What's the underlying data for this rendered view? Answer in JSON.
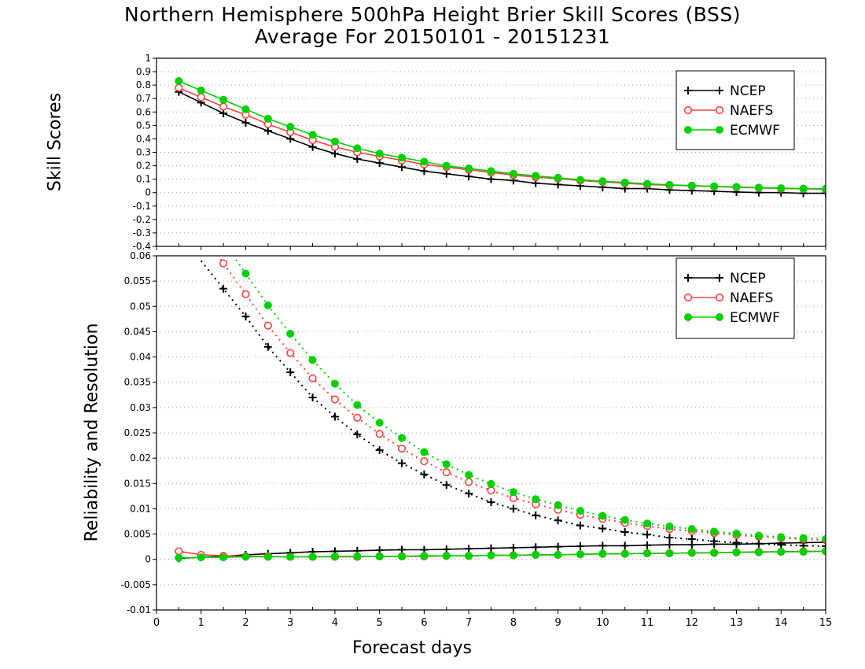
{
  "title_line1": "Northern Hemisphere 500hPa Height Brier Skill Scores (BSS)",
  "title_line2": "Average For 20150101 - 20151231",
  "chart_data": [
    {
      "type": "line",
      "ylabel": "Skill Scores",
      "xlim": [
        0,
        15
      ],
      "ylim": [
        -0.4,
        1
      ],
      "xticks": [
        "0",
        "1",
        "2",
        "3",
        "4",
        "5",
        "6",
        "7",
        "8",
        "9",
        "10",
        "11",
        "12",
        "13",
        "14",
        "15"
      ],
      "yticks": [
        "-0.4",
        "-0.3",
        "-0.2",
        "-0.1",
        "0",
        "0.1",
        "0.2",
        "0.3",
        "0.4",
        "0.5",
        "0.6",
        "0.7",
        "0.8",
        "0.9",
        "1"
      ],
      "grid": true,
      "legend_position": "top-right",
      "x": [
        0.5,
        1,
        1.5,
        2,
        2.5,
        3,
        3.5,
        4,
        4.5,
        5,
        5.5,
        6,
        6.5,
        7,
        7.5,
        8,
        8.5,
        9,
        9.5,
        10,
        10.5,
        11,
        11.5,
        12,
        12.5,
        13,
        13.5,
        14,
        14.5,
        15
      ],
      "series": [
        {
          "name": "NCEP",
          "color": "#000000",
          "marker": "plus",
          "values": [
            0.75,
            0.67,
            0.59,
            0.52,
            0.46,
            0.4,
            0.34,
            0.29,
            0.25,
            0.22,
            0.19,
            0.16,
            0.14,
            0.12,
            0.1,
            0.09,
            0.07,
            0.06,
            0.05,
            0.04,
            0.03,
            0.03,
            0.02,
            0.015,
            0.01,
            0.005,
            0.0,
            0.0,
            -0.005,
            -0.005
          ]
        },
        {
          "name": "NAEFS",
          "color": "#ff4040",
          "marker": "circle-open",
          "values": [
            0.78,
            0.71,
            0.64,
            0.58,
            0.51,
            0.45,
            0.39,
            0.34,
            0.3,
            0.27,
            0.24,
            0.21,
            0.19,
            0.17,
            0.15,
            0.13,
            0.115,
            0.105,
            0.09,
            0.08,
            0.07,
            0.06,
            0.055,
            0.05,
            0.045,
            0.04,
            0.035,
            0.03,
            0.028,
            0.025
          ]
        },
        {
          "name": "ECMWF",
          "color": "#00d000",
          "marker": "circle-filled",
          "values": [
            0.83,
            0.76,
            0.69,
            0.62,
            0.55,
            0.49,
            0.43,
            0.38,
            0.33,
            0.29,
            0.26,
            0.23,
            0.2,
            0.18,
            0.16,
            0.14,
            0.125,
            0.11,
            0.095,
            0.085,
            0.075,
            0.065,
            0.058,
            0.052,
            0.047,
            0.042,
            0.037,
            0.033,
            0.03,
            0.028
          ]
        }
      ]
    },
    {
      "type": "line",
      "ylabel": "Reliability and Resolution",
      "xlabel": "Forecast days",
      "xlim": [
        0,
        15
      ],
      "ylim": [
        -0.01,
        0.06
      ],
      "xticks": [
        "0",
        "1",
        "2",
        "3",
        "4",
        "5",
        "6",
        "7",
        "8",
        "9",
        "10",
        "11",
        "12",
        "13",
        "14",
        "15"
      ],
      "yticks": [
        "-0.01",
        "-0.005",
        "0",
        "0.005",
        "0.01",
        "0.015",
        "0.02",
        "0.025",
        "0.03",
        "0.035",
        "0.04",
        "0.045",
        "0.05",
        "0.055",
        "0.06"
      ],
      "grid": true,
      "legend_position": "top-right",
      "x": [
        0.5,
        1,
        1.5,
        2,
        2.5,
        3,
        3.5,
        4,
        4.5,
        5,
        5.5,
        6,
        6.5,
        7,
        7.5,
        8,
        8.5,
        9,
        9.5,
        10,
        10.5,
        11,
        11.5,
        12,
        12.5,
        13,
        13.5,
        14,
        14.5,
        15
      ],
      "series": [
        {
          "name": "NCEP",
          "color": "#000000",
          "marker": "plus",
          "role": "resolution",
          "values": [
            null,
            null,
            0.0535,
            0.048,
            0.042,
            0.037,
            0.032,
            0.0282,
            0.0247,
            0.0216,
            0.019,
            0.0168,
            0.0147,
            0.013,
            0.0113,
            0.01,
            0.0087,
            0.0077,
            0.0067,
            0.0061,
            0.0054,
            0.0049,
            0.0043,
            0.004,
            0.0036,
            0.0033,
            0.0031,
            0.0029,
            0.0027,
            0.0026
          ]
        },
        {
          "name": "NCEP",
          "color": "#000000",
          "marker": "plus",
          "role": "reliability",
          "values": [
            0.0002,
            0.0004,
            0.0006,
            0.0009,
            0.0011,
            0.0013,
            0.0015,
            0.0016,
            0.0017,
            0.0018,
            0.0019,
            0.0019,
            0.002,
            0.0021,
            0.0022,
            0.0023,
            0.0024,
            0.0025,
            0.0026,
            0.0027,
            0.0027,
            0.0028,
            0.0029,
            0.0029,
            0.003,
            0.003,
            0.0031,
            0.0032,
            0.0033,
            0.0034
          ]
        },
        {
          "name": "NAEFS",
          "color": "#ff4040",
          "marker": "circle-open",
          "role": "resolution",
          "values": [
            null,
            null,
            0.0585,
            0.0524,
            0.0462,
            0.0408,
            0.0358,
            0.0316,
            0.028,
            0.0248,
            0.0219,
            0.0194,
            0.0172,
            0.0153,
            0.0136,
            0.0121,
            0.0109,
            0.0098,
            0.0088,
            0.008,
            0.0072,
            0.0066,
            0.006,
            0.0056,
            0.0052,
            0.0048,
            0.0045,
            0.0042,
            0.004,
            0.0038
          ]
        },
        {
          "name": "NAEFS",
          "color": "#ff4040",
          "marker": "circle-open",
          "role": "reliability",
          "values": [
            0.0016,
            0.0009,
            0.0007,
            0.0006,
            0.0006,
            0.0005,
            0.0005,
            0.0005,
            0.0005,
            0.0006,
            0.0006,
            0.0006,
            0.0007,
            0.0007,
            0.0008,
            0.0008,
            0.0009,
            0.0009,
            0.001,
            0.0011,
            0.0011,
            0.0012,
            0.0012,
            0.0013,
            0.0013,
            0.0014,
            0.0015,
            0.0015,
            0.0016,
            0.0016
          ]
        },
        {
          "name": "ECMWF",
          "color": "#00d000",
          "marker": "circle-filled",
          "role": "resolution",
          "values": [
            null,
            null,
            null,
            0.0565,
            0.0502,
            0.0446,
            0.0394,
            0.0347,
            0.0305,
            0.027,
            0.024,
            0.0212,
            0.0188,
            0.0167,
            0.0149,
            0.0133,
            0.0119,
            0.0107,
            0.0096,
            0.0086,
            0.0078,
            0.0071,
            0.0065,
            0.006,
            0.0055,
            0.0051,
            0.0047,
            0.0044,
            0.0042,
            0.004
          ]
        },
        {
          "name": "ECMWF",
          "color": "#00d000",
          "marker": "circle-filled",
          "role": "reliability",
          "values": [
            0.0003,
            0.0004,
            0.0004,
            0.0005,
            0.0005,
            0.0005,
            0.0005,
            0.0006,
            0.0006,
            0.0006,
            0.0006,
            0.0007,
            0.0007,
            0.0007,
            0.0008,
            0.0008,
            0.0009,
            0.0009,
            0.001,
            0.0011,
            0.0011,
            0.0012,
            0.0012,
            0.0013,
            0.0013,
            0.0014,
            0.0014,
            0.0015,
            0.0015,
            0.0016
          ]
        }
      ]
    }
  ]
}
